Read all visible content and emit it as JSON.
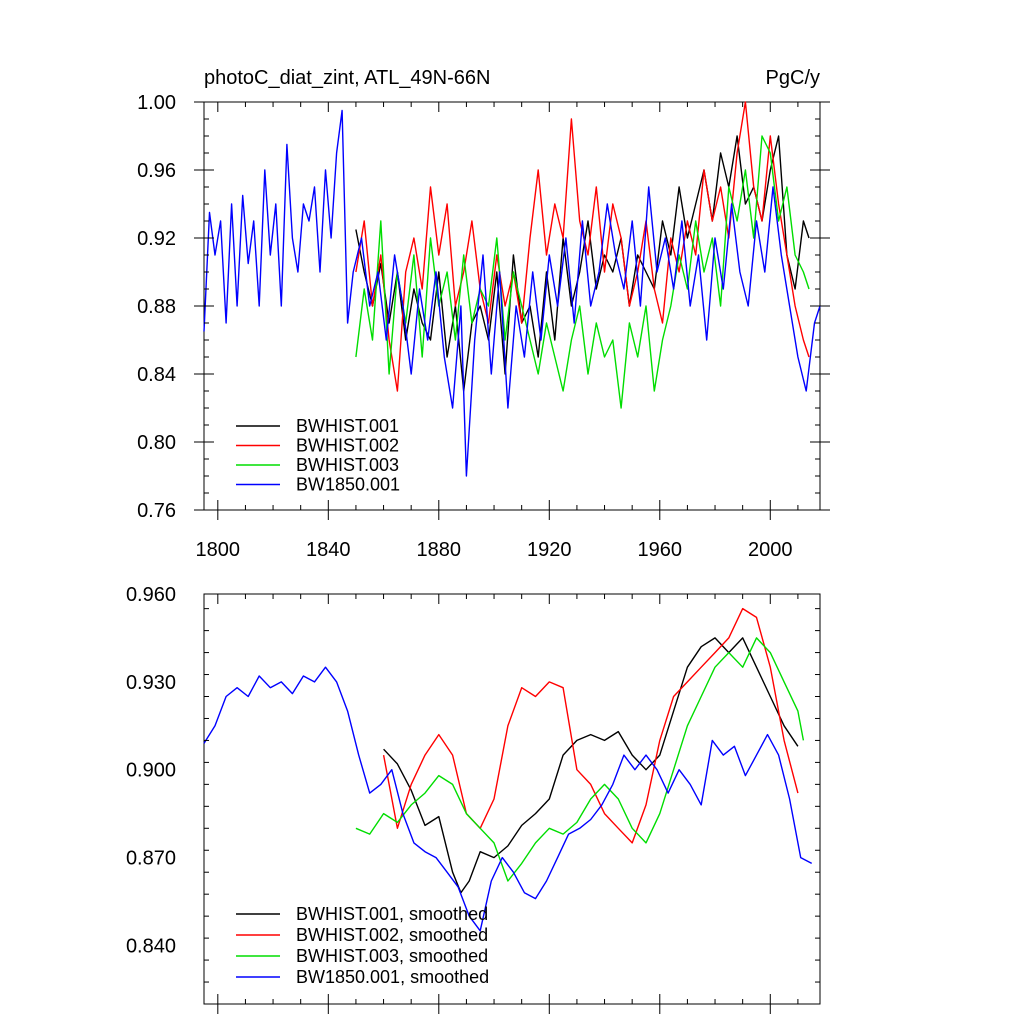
{
  "chart_data": [
    {
      "type": "line",
      "title_left": "photoC_diat_zint, ATL_49N-66N",
      "title_right": "PgC/y",
      "xlim": [
        1795,
        2018
      ],
      "ylim": [
        0.76,
        1.0
      ],
      "xticks": [
        1800,
        1840,
        1880,
        1920,
        1960,
        2000
      ],
      "xtick_labels": [
        "1800",
        "1840",
        "1880",
        "1920",
        "1960",
        "2000"
      ],
      "yticks": [
        0.76,
        0.8,
        0.84,
        0.88,
        0.92,
        0.96,
        1.0
      ],
      "ytick_labels": [
        "0.76",
        "0.80",
        "0.84",
        "0.88",
        "0.92",
        "0.96",
        "1.00"
      ],
      "legend": [
        "BWHIST.001",
        "BWHIST.002",
        "BWHIST.003",
        "BW1850.001"
      ],
      "series": [
        {
          "name": "BWHIST.001",
          "color": "#000000",
          "x": [
            1850,
            1853,
            1856,
            1859,
            1862,
            1865,
            1868,
            1871,
            1874,
            1877,
            1880,
            1883,
            1886,
            1889,
            1892,
            1895,
            1898,
            1901,
            1904,
            1907,
            1910,
            1913,
            1916,
            1919,
            1922,
            1925,
            1928,
            1931,
            1934,
            1937,
            1940,
            1943,
            1946,
            1949,
            1952,
            1955,
            1958,
            1961,
            1964,
            1967,
            1970,
            1973,
            1976,
            1979,
            1982,
            1985,
            1988,
            1991,
            1994,
            1997,
            2000,
            2003,
            2006,
            2009,
            2012,
            2014
          ],
          "y": [
            0.925,
            0.9,
            0.88,
            0.905,
            0.87,
            0.9,
            0.86,
            0.89,
            0.87,
            0.86,
            0.9,
            0.85,
            0.88,
            0.83,
            0.87,
            0.88,
            0.86,
            0.9,
            0.84,
            0.91,
            0.87,
            0.88,
            0.85,
            0.9,
            0.86,
            0.92,
            0.88,
            0.9,
            0.93,
            0.89,
            0.91,
            0.9,
            0.92,
            0.88,
            0.91,
            0.9,
            0.89,
            0.93,
            0.91,
            0.95,
            0.92,
            0.94,
            0.96,
            0.93,
            0.97,
            0.95,
            0.98,
            0.94,
            0.95,
            0.93,
            0.96,
            0.98,
            0.91,
            0.89,
            0.93,
            0.92
          ]
        },
        {
          "name": "BWHIST.002",
          "color": "#ff0000",
          "x": [
            1850,
            1853,
            1856,
            1859,
            1862,
            1865,
            1868,
            1871,
            1874,
            1877,
            1880,
            1883,
            1886,
            1889,
            1892,
            1895,
            1898,
            1901,
            1904,
            1907,
            1910,
            1913,
            1916,
            1919,
            1922,
            1925,
            1928,
            1931,
            1934,
            1937,
            1940,
            1943,
            1946,
            1949,
            1952,
            1955,
            1958,
            1961,
            1964,
            1967,
            1970,
            1973,
            1976,
            1979,
            1982,
            1985,
            1988,
            1991,
            1994,
            1997,
            2000,
            2003,
            2006,
            2009,
            2012,
            2014
          ],
          "y": [
            0.9,
            0.93,
            0.88,
            0.91,
            0.86,
            0.83,
            0.9,
            0.92,
            0.89,
            0.95,
            0.91,
            0.94,
            0.88,
            0.9,
            0.93,
            0.89,
            0.87,
            0.91,
            0.88,
            0.9,
            0.87,
            0.92,
            0.96,
            0.91,
            0.94,
            0.92,
            0.99,
            0.93,
            0.91,
            0.95,
            0.9,
            0.94,
            0.92,
            0.88,
            0.9,
            0.93,
            0.89,
            0.87,
            0.92,
            0.9,
            0.93,
            0.91,
            0.96,
            0.93,
            0.95,
            0.92,
            0.97,
            1.0,
            0.95,
            0.93,
            0.98,
            0.94,
            0.91,
            0.88,
            0.86,
            0.85
          ]
        },
        {
          "name": "BWHIST.003",
          "color": "#00dd00",
          "x": [
            1850,
            1853,
            1856,
            1859,
            1862,
            1865,
            1868,
            1871,
            1874,
            1877,
            1880,
            1883,
            1886,
            1889,
            1892,
            1895,
            1898,
            1901,
            1904,
            1907,
            1910,
            1913,
            1916,
            1919,
            1922,
            1925,
            1928,
            1931,
            1934,
            1937,
            1940,
            1943,
            1946,
            1949,
            1952,
            1955,
            1958,
            1961,
            1964,
            1967,
            1970,
            1973,
            1976,
            1979,
            1982,
            1985,
            1988,
            1991,
            1994,
            1997,
            2000,
            2003,
            2006,
            2009,
            2012,
            2014
          ],
          "y": [
            0.85,
            0.89,
            0.86,
            0.93,
            0.84,
            0.9,
            0.87,
            0.91,
            0.85,
            0.92,
            0.88,
            0.9,
            0.86,
            0.91,
            0.87,
            0.89,
            0.88,
            0.92,
            0.86,
            0.9,
            0.88,
            0.86,
            0.84,
            0.87,
            0.85,
            0.83,
            0.86,
            0.88,
            0.84,
            0.87,
            0.85,
            0.86,
            0.82,
            0.87,
            0.85,
            0.88,
            0.83,
            0.86,
            0.88,
            0.91,
            0.89,
            0.93,
            0.9,
            0.92,
            0.88,
            0.95,
            0.93,
            0.96,
            0.92,
            0.98,
            0.97,
            0.93,
            0.95,
            0.91,
            0.9,
            0.89
          ]
        },
        {
          "name": "BW1850.001",
          "color": "#0000ff",
          "x": [
            1795,
            1797,
            1799,
            1801,
            1803,
            1805,
            1807,
            1809,
            1811,
            1813,
            1815,
            1817,
            1819,
            1821,
            1823,
            1825,
            1827,
            1829,
            1831,
            1833,
            1835,
            1837,
            1839,
            1841,
            1843,
            1845,
            1847,
            1849,
            1852,
            1855,
            1858,
            1861,
            1864,
            1867,
            1870,
            1873,
            1876,
            1879,
            1882,
            1885,
            1888,
            1890,
            1893,
            1896,
            1899,
            1902,
            1905,
            1908,
            1911,
            1914,
            1917,
            1920,
            1923,
            1926,
            1929,
            1932,
            1935,
            1938,
            1941,
            1944,
            1947,
            1950,
            1953,
            1956,
            1959,
            1962,
            1965,
            1968,
            1971,
            1974,
            1977,
            1980,
            1983,
            1986,
            1989,
            1992,
            1995,
            1998,
            2001,
            2004,
            2007,
            2010,
            2013,
            2016,
            2018
          ],
          "y": [
            0.865,
            0.935,
            0.91,
            0.93,
            0.87,
            0.94,
            0.88,
            0.945,
            0.905,
            0.93,
            0.88,
            0.96,
            0.91,
            0.94,
            0.88,
            0.975,
            0.92,
            0.9,
            0.94,
            0.93,
            0.95,
            0.9,
            0.96,
            0.92,
            0.97,
            0.995,
            0.87,
            0.9,
            0.92,
            0.88,
            0.9,
            0.86,
            0.91,
            0.88,
            0.84,
            0.89,
            0.86,
            0.9,
            0.85,
            0.82,
            0.88,
            0.78,
            0.86,
            0.91,
            0.84,
            0.9,
            0.82,
            0.88,
            0.85,
            0.9,
            0.86,
            0.91,
            0.88,
            0.92,
            0.87,
            0.93,
            0.88,
            0.9,
            0.94,
            0.91,
            0.89,
            0.93,
            0.88,
            0.95,
            0.9,
            0.92,
            0.89,
            0.93,
            0.88,
            0.91,
            0.86,
            0.92,
            0.89,
            0.94,
            0.9,
            0.88,
            0.93,
            0.9,
            0.95,
            0.91,
            0.88,
            0.85,
            0.83,
            0.87,
            0.88
          ]
        }
      ]
    },
    {
      "type": "line",
      "title_left": "",
      "title_right": "",
      "xlim": [
        1795,
        2018
      ],
      "ylim": [
        0.82,
        0.96
      ],
      "xticks": [
        1800,
        1840,
        1880,
        1920,
        1960,
        2000
      ],
      "xtick_labels": [],
      "yticks": [
        0.84,
        0.87,
        0.9,
        0.93,
        0.96
      ],
      "ytick_labels": [
        "0.840",
        "0.870",
        "0.900",
        "0.930",
        "0.960"
      ],
      "legend": [
        "BWHIST.001, smoothed",
        "BWHIST.002, smoothed",
        "BWHIST.003, smoothed",
        "BW1850.001, smoothed"
      ],
      "series": [
        {
          "name": "BWHIST.001, smoothed",
          "color": "#000000",
          "x": [
            1860,
            1865,
            1870,
            1875,
            1880,
            1885,
            1888,
            1891,
            1895,
            1900,
            1905,
            1910,
            1915,
            1920,
            1925,
            1930,
            1935,
            1940,
            1945,
            1950,
            1955,
            1960,
            1965,
            1970,
            1975,
            1980,
            1985,
            1990,
            1995,
            2000,
            2005,
            2010
          ],
          "y": [
            0.907,
            0.902,
            0.893,
            0.881,
            0.884,
            0.865,
            0.858,
            0.862,
            0.872,
            0.87,
            0.874,
            0.881,
            0.885,
            0.89,
            0.905,
            0.91,
            0.912,
            0.91,
            0.913,
            0.905,
            0.9,
            0.905,
            0.92,
            0.935,
            0.942,
            0.945,
            0.94,
            0.945,
            0.935,
            0.925,
            0.915,
            0.908
          ]
        },
        {
          "name": "BWHIST.002, smoothed",
          "color": "#ff0000",
          "x": [
            1860,
            1865,
            1870,
            1875,
            1880,
            1885,
            1890,
            1895,
            1900,
            1905,
            1910,
            1915,
            1920,
            1925,
            1930,
            1935,
            1940,
            1945,
            1950,
            1955,
            1960,
            1965,
            1970,
            1975,
            1980,
            1985,
            1990,
            1995,
            2000,
            2005,
            2010
          ],
          "y": [
            0.905,
            0.88,
            0.895,
            0.905,
            0.912,
            0.905,
            0.885,
            0.88,
            0.89,
            0.915,
            0.928,
            0.925,
            0.93,
            0.928,
            0.9,
            0.895,
            0.885,
            0.88,
            0.875,
            0.888,
            0.91,
            0.925,
            0.93,
            0.935,
            0.94,
            0.945,
            0.955,
            0.952,
            0.935,
            0.91,
            0.892
          ]
        },
        {
          "name": "BWHIST.003, smoothed",
          "color": "#00dd00",
          "x": [
            1850,
            1855,
            1860,
            1865,
            1870,
            1875,
            1880,
            1885,
            1890,
            1895,
            1900,
            1905,
            1910,
            1915,
            1920,
            1925,
            1930,
            1935,
            1940,
            1945,
            1950,
            1955,
            1960,
            1965,
            1970,
            1975,
            1980,
            1985,
            1990,
            1995,
            2000,
            2005,
            2010,
            2012
          ],
          "y": [
            0.88,
            0.878,
            0.885,
            0.882,
            0.888,
            0.892,
            0.898,
            0.895,
            0.885,
            0.88,
            0.875,
            0.862,
            0.868,
            0.875,
            0.88,
            0.878,
            0.882,
            0.89,
            0.895,
            0.89,
            0.88,
            0.875,
            0.885,
            0.9,
            0.915,
            0.925,
            0.935,
            0.94,
            0.935,
            0.945,
            0.94,
            0.93,
            0.92,
            0.91
          ]
        },
        {
          "name": "BW1850.001, smoothed",
          "color": "#0000ff",
          "x": [
            1795,
            1799,
            1803,
            1807,
            1811,
            1815,
            1819,
            1823,
            1827,
            1831,
            1835,
            1839,
            1843,
            1847,
            1851,
            1855,
            1859,
            1863,
            1867,
            1871,
            1875,
            1879,
            1883,
            1887,
            1891,
            1895,
            1899,
            1903,
            1907,
            1911,
            1915,
            1919,
            1923,
            1927,
            1931,
            1935,
            1939,
            1943,
            1947,
            1951,
            1955,
            1959,
            1963,
            1967,
            1971,
            1975,
            1979,
            1983,
            1987,
            1991,
            1995,
            1999,
            2003,
            2007,
            2011,
            2015
          ],
          "y": [
            0.909,
            0.915,
            0.925,
            0.928,
            0.925,
            0.932,
            0.928,
            0.93,
            0.926,
            0.932,
            0.93,
            0.935,
            0.93,
            0.92,
            0.905,
            0.892,
            0.895,
            0.9,
            0.885,
            0.875,
            0.872,
            0.87,
            0.865,
            0.86,
            0.85,
            0.845,
            0.862,
            0.87,
            0.865,
            0.858,
            0.856,
            0.862,
            0.87,
            0.878,
            0.88,
            0.883,
            0.888,
            0.895,
            0.905,
            0.9,
            0.905,
            0.9,
            0.892,
            0.9,
            0.895,
            0.888,
            0.91,
            0.905,
            0.908,
            0.898,
            0.905,
            0.912,
            0.905,
            0.89,
            0.87,
            0.868
          ]
        }
      ]
    }
  ]
}
